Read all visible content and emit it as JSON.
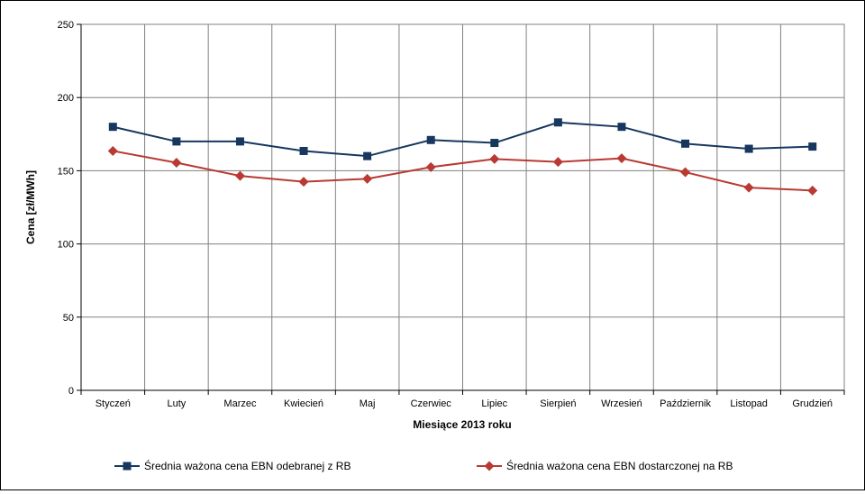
{
  "chart_data": {
    "type": "line",
    "categories": [
      "Styczeń",
      "Luty",
      "Marzec",
      "Kwiecień",
      "Maj",
      "Czerwiec",
      "Lipiec",
      "Sierpień",
      "Wrzesień",
      "Październik",
      "Listopad",
      "Grudzień"
    ],
    "series": [
      {
        "name": "Średnia ważona cena EBN odebranej z RB",
        "color": "#17375e",
        "marker": "square",
        "values": [
          180,
          170,
          170,
          163.5,
          160,
          171,
          169,
          183,
          180,
          168.5,
          165,
          166.5
        ]
      },
      {
        "name": "Średnia ważona cena EBN dostarczonej na RB",
        "color": "#b83a32",
        "marker": "diamond",
        "values": [
          163.5,
          155.5,
          146.5,
          142.5,
          144.5,
          152.5,
          158,
          156,
          158.5,
          149,
          138.5,
          136.5
        ]
      }
    ],
    "xlabel": "Miesiące 2013  roku",
    "ylabel": "Cena [zł/MWh]",
    "ylim": [
      0,
      250
    ],
    "yticks": [
      0,
      50,
      100,
      150,
      200,
      250
    ],
    "grid": true,
    "legend": "bottom"
  }
}
